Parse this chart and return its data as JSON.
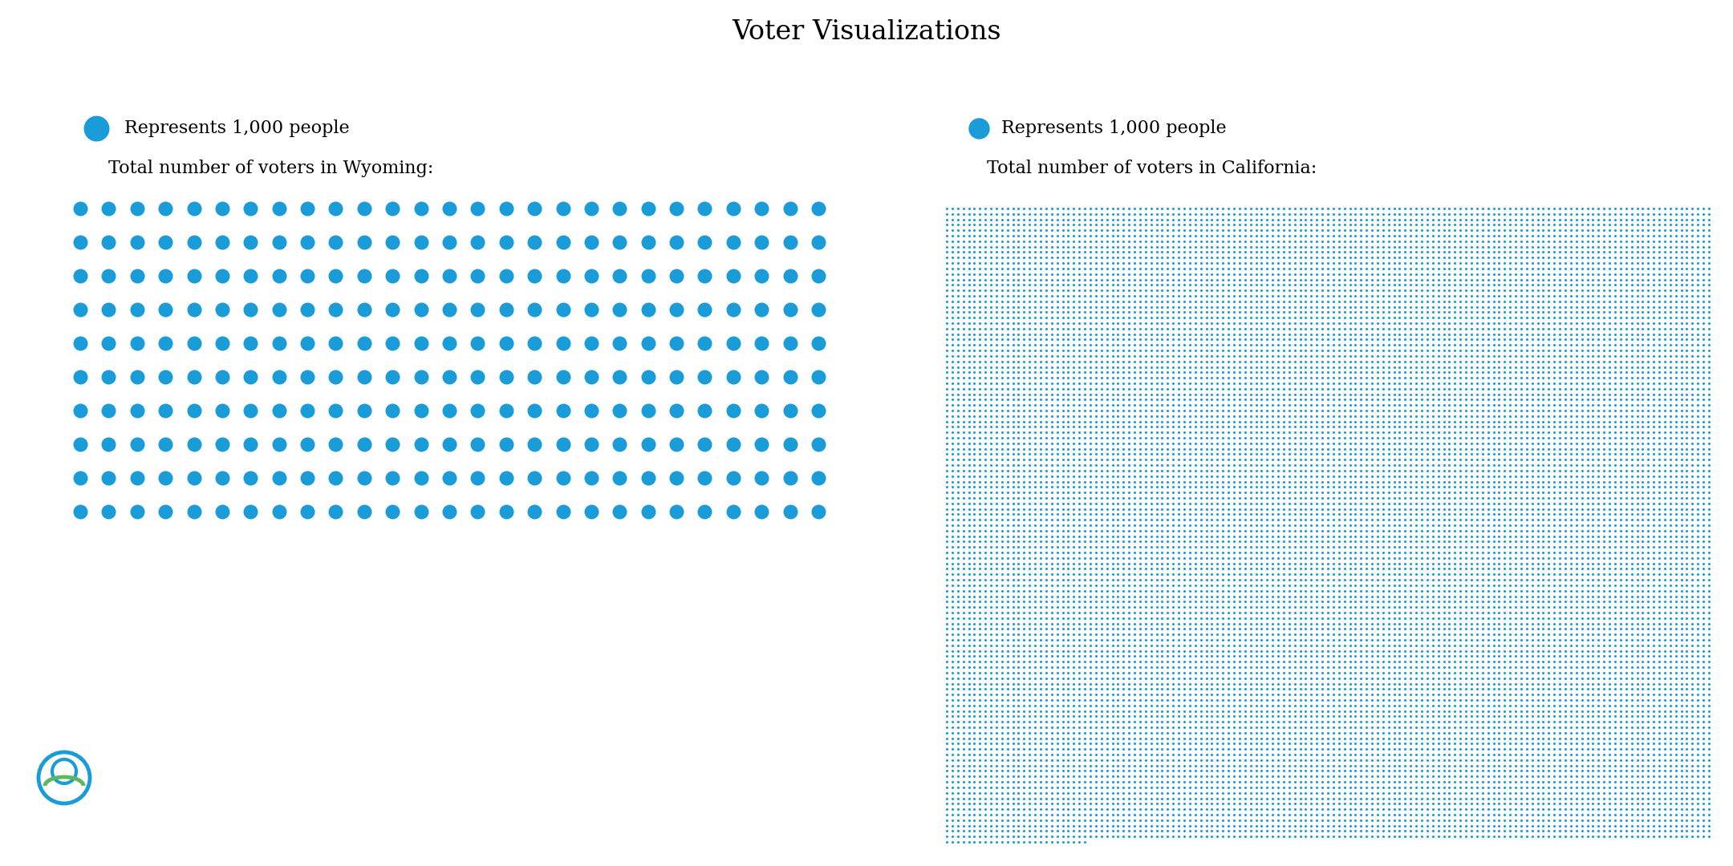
{
  "title": "Voter Visualizations",
  "title_fontsize": 24,
  "title_font": "serif",
  "background_color": "#ffffff",
  "dot_color": "#1a9cd8",
  "legend_dot_label": "Represents 1,000 people",
  "wyoming_label": "Total number of voters in Wyoming:",
  "california_label": "Total number of voters in California:",
  "wyoming_voters": 270,
  "california_voters": 16150,
  "dot_size_wyoming": 13,
  "dot_size_california": 2.2,
  "wyoming_cols": 27,
  "legend_dot_size_wy": 22,
  "legend_dot_size_ca": 18,
  "logo_circle_color": "#1a9cd8",
  "logo_arc_color": "#5cb85c",
  "font_size_labels": 16
}
